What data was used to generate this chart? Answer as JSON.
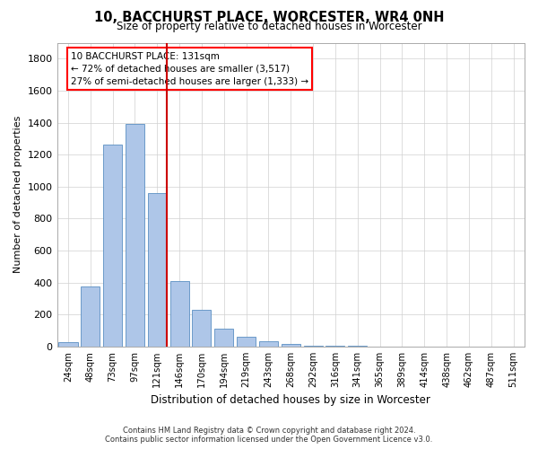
{
  "title": "10, BACCHURST PLACE, WORCESTER, WR4 0NH",
  "subtitle": "Size of property relative to detached houses in Worcester",
  "xlabel": "Distribution of detached houses by size in Worcester",
  "ylabel": "Number of detached properties",
  "footer_line1": "Contains HM Land Registry data © Crown copyright and database right 2024.",
  "footer_line2": "Contains public sector information licensed under the Open Government Licence v3.0.",
  "categories": [
    "24sqm",
    "48sqm",
    "73sqm",
    "97sqm",
    "121sqm",
    "146sqm",
    "170sqm",
    "194sqm",
    "219sqm",
    "243sqm",
    "268sqm",
    "292sqm",
    "316sqm",
    "341sqm",
    "365sqm",
    "389sqm",
    "414sqm",
    "438sqm",
    "462sqm",
    "487sqm",
    "511sqm"
  ],
  "values": [
    25,
    375,
    1260,
    1390,
    960,
    410,
    230,
    110,
    60,
    35,
    15,
    8,
    5,
    3,
    2,
    2,
    1,
    1,
    1,
    1,
    1
  ],
  "bar_color": "#aec6e8",
  "bar_edge_color": "#5a8fc2",
  "highlight_index": 4,
  "highlight_color": "#cc0000",
  "annotation_line1": "10 BACCHURST PLACE: 131sqm",
  "annotation_line2": "← 72% of detached houses are smaller (3,517)",
  "annotation_line3": "27% of semi-detached houses are larger (1,333) →",
  "ylim": [
    0,
    1900
  ],
  "yticks": [
    0,
    200,
    400,
    600,
    800,
    1000,
    1200,
    1400,
    1600,
    1800
  ],
  "background_color": "#ffffff",
  "grid_color": "#d0d0d0"
}
